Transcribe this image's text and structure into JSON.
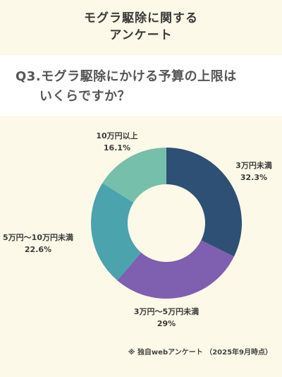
{
  "header": {
    "title_line1": "モグラ駆除に関する",
    "title_line2": "アンケート"
  },
  "question": {
    "line1": "Q3.モグラ駆除にかける予算の上限は",
    "line2": "いくらですか？"
  },
  "note": "※ 独自webアンケート （2025年9月時点）",
  "chart_data": {
    "type": "pie",
    "donut": true,
    "categories": [
      "3万円未満",
      "3万円～5万円未満",
      "5万円～10万円未満",
      "10万円以上"
    ],
    "values": [
      32.3,
      29,
      22.6,
      16.1
    ],
    "value_labels": [
      "32.3%",
      "29%",
      "22.6%",
      "16.1%"
    ],
    "colors": [
      "#2e5075",
      "#7f5fb0",
      "#4ba3ae",
      "#76bfaa"
    ],
    "legend": "labels-outside"
  }
}
